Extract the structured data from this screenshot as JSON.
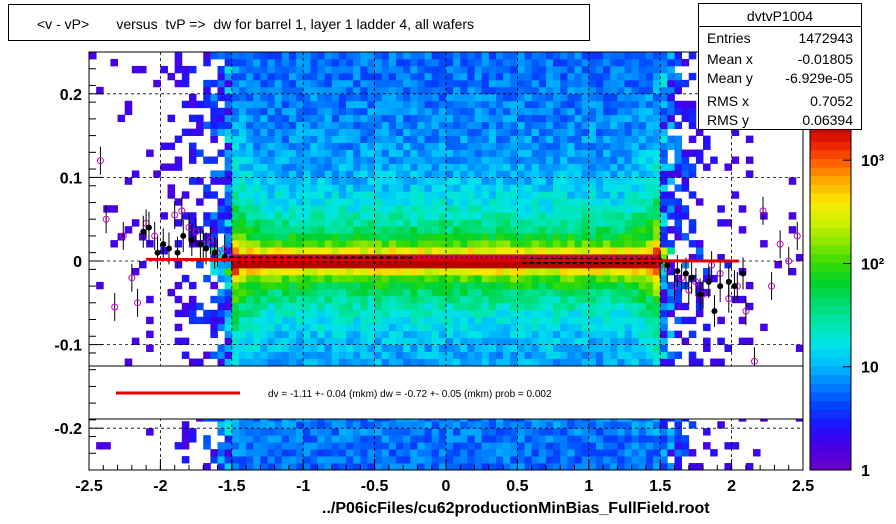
{
  "title": "<v - vP>       versus  tvP =>  dw for barrel 1, layer 1 ladder 4, all wafers",
  "xlabel": "../P06icFiles/cu62productionMinBias_FullField.root",
  "stats": {
    "title": "dvtvP1004",
    "rows": [
      {
        "label": "Entries",
        "value": "1472943"
      },
      {
        "label": "Mean x",
        "value": "-0.01805"
      },
      {
        "label": "Mean y",
        "value": "-6.929e-05"
      },
      {
        "label": "RMS x",
        "value": "0.7052"
      },
      {
        "label": "RMS y",
        "value": "0.06394"
      }
    ]
  },
  "fit_legend": "dv =   -1.11 +-  0.04 (mkm) dw =   -0.72 +-  0.05 (mkm) prob = 0.002",
  "colors": {
    "fit_line": "#e00000",
    "profile_black": "#000000",
    "profile_magenta": "#cc00cc"
  },
  "chart_data": {
    "type": "heatmap",
    "xlim": [
      -2.5,
      2.5
    ],
    "ylim": [
      -0.25,
      0.25
    ],
    "x_ticks": [
      -2.5,
      -2,
      -1.5,
      -1,
      -0.5,
      0,
      0.5,
      1,
      1.5,
      2,
      2.5
    ],
    "x_tick_labels": [
      "-2.5",
      "-2",
      "-1.5",
      "-1",
      "-0.5",
      "0",
      "0.5",
      "1",
      "1.5",
      "2",
      "2.5"
    ],
    "y_ticks": [
      -0.2,
      -0.1,
      0,
      0.1,
      0.2
    ],
    "y_tick_labels": [
      "-0.2",
      "-0.1",
      "0",
      "0.1",
      "0.2"
    ],
    "z_scale": "log",
    "z_ticks": [
      1,
      10,
      100,
      1000
    ],
    "z_tick_labels": [
      "1",
      "10",
      "10²",
      "10³"
    ],
    "grid": true,
    "fit_line": {
      "x": [
        -2.1,
        2.05
      ],
      "y": [
        0.002,
        0.0
      ]
    },
    "profile_black": {
      "x": [
        -2.12,
        -2.08,
        -2.02,
        -1.98,
        -1.94,
        -1.88,
        -1.84,
        -1.78,
        -1.72,
        -1.68,
        -1.62,
        -1.55,
        -1.5,
        -1.45,
        -1.4,
        -1.35,
        -1.3,
        -1.25,
        -1.2,
        -1.15,
        -1.1,
        -1.05,
        -1.0,
        -0.95,
        -0.9,
        -0.85,
        -0.8,
        -0.75,
        -0.7,
        -0.65,
        -0.6,
        -0.55,
        -0.5,
        -0.45,
        -0.4,
        -0.35,
        -0.3,
        -0.25,
        0.55,
        0.6,
        0.65,
        0.7,
        0.75,
        0.8,
        0.85,
        0.9,
        0.95,
        1.0,
        1.05,
        1.1,
        1.15,
        1.2,
        1.25,
        1.3,
        1.35,
        1.4,
        1.45,
        1.5,
        1.55,
        1.62,
        1.68,
        1.72,
        1.78,
        1.84,
        1.88,
        1.92,
        1.98,
        2.02,
        2.08
      ],
      "y": [
        0.035,
        0.04,
        0.01,
        0.02,
        0.015,
        0.01,
        0.03,
        0.025,
        0.02,
        0.015,
        0.01,
        0.005,
        0.003,
        0.002,
        0.002,
        0.002,
        0.002,
        0.002,
        0.002,
        0.002,
        0.002,
        0.002,
        0.002,
        0.002,
        0.002,
        0.002,
        0.002,
        0.002,
        0.002,
        0.002,
        0.002,
        0.002,
        0.002,
        0.002,
        0.002,
        0.002,
        0.002,
        0.002,
        0.0,
        0.0,
        0.0,
        0.0,
        0.0,
        0.0,
        0.0,
        0.0,
        0.0,
        0.0,
        0.0,
        0.0,
        0.0,
        0.0,
        0.0,
        0.0,
        0.0,
        0.0,
        0.0,
        0.0,
        -0.005,
        -0.012,
        -0.015,
        -0.02,
        -0.04,
        -0.025,
        -0.06,
        -0.03,
        -0.025,
        -0.03,
        -0.015
      ]
    },
    "profile_magenta": {
      "x": [
        -2.42,
        -2.38,
        -2.32,
        -2.26,
        -2.2,
        -2.16,
        -2.1,
        -2.04,
        -1.9,
        -1.85,
        -1.8,
        -1.75,
        -1.7,
        -1.65,
        -1.6,
        -1.55,
        -1.5,
        1.5,
        1.55,
        1.6,
        1.65,
        1.7,
        1.75,
        1.8,
        1.86,
        1.92,
        1.98,
        2.04,
        2.1,
        2.16,
        2.22,
        2.28,
        2.34,
        2.4,
        2.46
      ],
      "y": [
        0.12,
        0.05,
        -0.055,
        0.03,
        -0.02,
        -0.05,
        0.045,
        0.03,
        0.055,
        0.06,
        0.04,
        0.035,
        0.02,
        0.025,
        0.01,
        0.015,
        0.005,
        -0.005,
        -0.01,
        -0.03,
        -0.02,
        -0.035,
        -0.025,
        -0.04,
        -0.005,
        -0.015,
        -0.045,
        -0.03,
        -0.06,
        -0.12,
        0.06,
        -0.03,
        0.02,
        0.0,
        0.03
      ]
    }
  }
}
